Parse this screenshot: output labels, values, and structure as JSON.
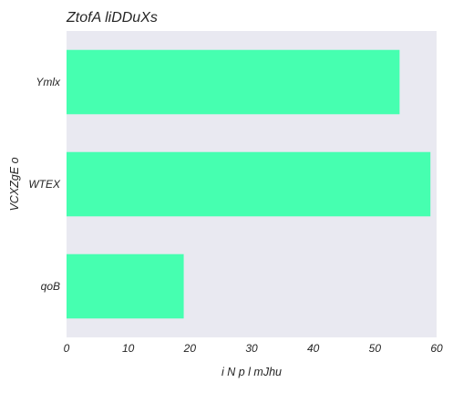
{
  "chart_data": {
    "type": "bar",
    "orientation": "horizontal",
    "title": "ZtofA liDDuXs",
    "xlabel": "i N p l mJhu",
    "ylabel": "VCXZgE  o",
    "categories": [
      "Ymlx",
      "WTEX",
      "qoB"
    ],
    "values": [
      54,
      59,
      19
    ],
    "xlim": [
      0,
      60
    ],
    "xticks": [
      0,
      10,
      20,
      30,
      40,
      50,
      60
    ],
    "grid": false,
    "colors": {
      "bar": "#46ffb0",
      "plot_background": "#e9e9f1",
      "text": "#262626"
    }
  }
}
